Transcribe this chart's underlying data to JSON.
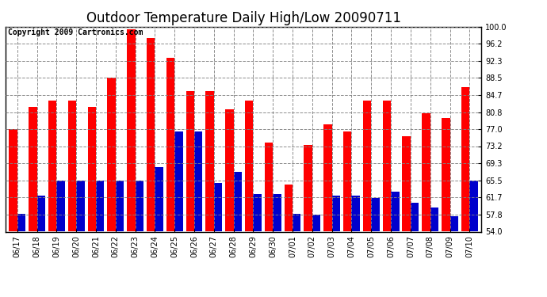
{
  "title": "Outdoor Temperature Daily High/Low 20090711",
  "copyright": "Copyright 2009 Cartronics.com",
  "categories": [
    "06/17",
    "06/18",
    "06/19",
    "06/20",
    "06/21",
    "06/22",
    "06/23",
    "06/24",
    "06/25",
    "06/26",
    "06/27",
    "06/28",
    "06/29",
    "06/30",
    "07/01",
    "07/02",
    "07/03",
    "07/04",
    "07/05",
    "07/06",
    "07/07",
    "07/08",
    "07/09",
    "07/10"
  ],
  "highs": [
    77.0,
    82.0,
    83.5,
    83.5,
    82.0,
    88.5,
    99.5,
    97.5,
    93.0,
    85.5,
    85.5,
    81.5,
    83.5,
    74.0,
    64.5,
    73.5,
    78.0,
    76.5,
    83.5,
    83.5,
    75.5,
    80.5,
    79.5,
    86.5
  ],
  "lows": [
    58.0,
    62.0,
    65.5,
    65.5,
    65.5,
    65.5,
    65.5,
    68.5,
    76.5,
    76.5,
    65.0,
    67.5,
    62.5,
    62.5,
    58.0,
    57.8,
    62.0,
    62.0,
    61.5,
    63.0,
    60.5,
    59.5,
    57.5,
    65.5
  ],
  "high_color": "#ff0000",
  "low_color": "#0000cc",
  "bg_color": "#ffffff",
  "grid_color": "#808080",
  "ymin": 54.0,
  "ymax": 100.0,
  "yticks": [
    54.0,
    57.8,
    61.7,
    65.5,
    69.3,
    73.2,
    77.0,
    80.8,
    84.7,
    88.5,
    92.3,
    96.2,
    100.0
  ],
  "title_fontsize": 12,
  "copyright_fontsize": 7,
  "tick_fontsize": 7,
  "bar_width": 0.42
}
